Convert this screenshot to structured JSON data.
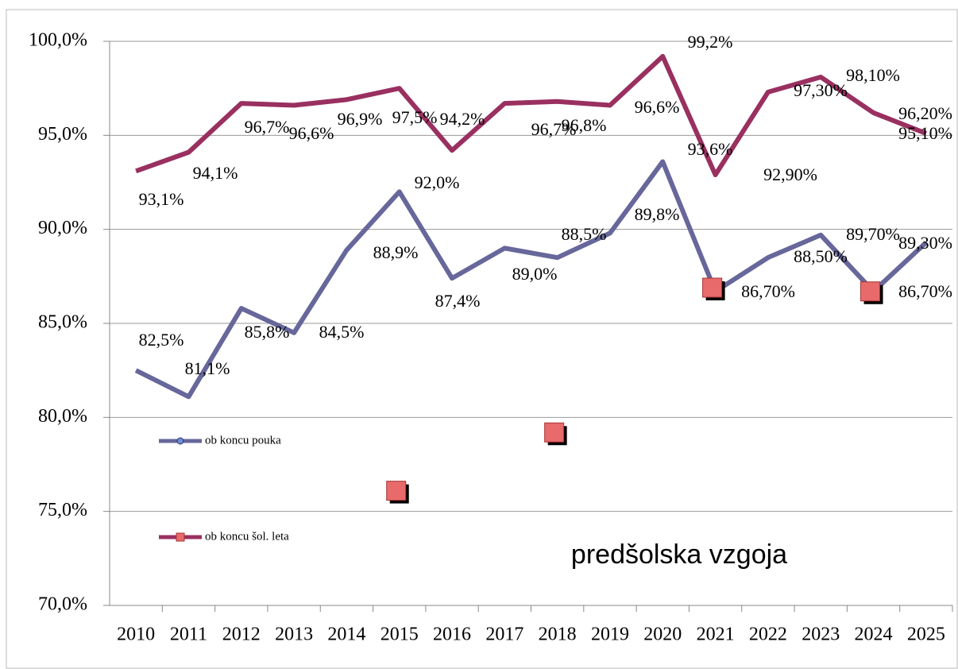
{
  "chart_data": {
    "type": "line",
    "categories": [
      "2010",
      "2011",
      "2012",
      "2013",
      "2014",
      "2015",
      "2016",
      "2017",
      "2018",
      "2019",
      "2020",
      "2021",
      "2022",
      "2023",
      "2024",
      "2025"
    ],
    "series": [
      {
        "name": "ob koncu pouka",
        "color": "#67679b",
        "values": [
          82.5,
          81.1,
          85.8,
          84.5,
          88.9,
          92.0,
          87.4,
          89.0,
          88.5,
          89.8,
          93.6,
          86.7,
          88.5,
          89.7,
          86.7,
          89.3
        ],
        "value_labels": [
          "82,5%",
          "81,1%",
          "85,8%",
          "84,5%",
          "88,9%",
          "92,0%",
          "87,4%",
          "89,0%",
          "88,5%",
          "89,8%",
          "93,6%",
          "86,70%",
          "88,50%",
          "89,70%",
          "86,70%",
          "89,30%"
        ]
      },
      {
        "name": "ob koncu šol. leta",
        "color": "#993060",
        "values": [
          93.1,
          94.1,
          96.7,
          96.6,
          96.9,
          97.5,
          94.2,
          96.7,
          96.8,
          96.6,
          99.2,
          92.9,
          97.3,
          98.1,
          96.2,
          95.1
        ],
        "value_labels": [
          "93,1%",
          "94,1%",
          "96,7%",
          "96,6%",
          "96,9%",
          "97,5%",
          "94,2%",
          "96,7%",
          "96,8%",
          "96,6%",
          "99,2%",
          "92,90%",
          "97,30%",
          "98,10%",
          "96,20%",
          "95,10%"
        ]
      }
    ],
    "extra_points": {
      "color": "#e86a6a",
      "x": [
        "2015",
        "2018",
        "2021",
        "2024"
      ],
      "values": [
        76.1,
        79.2,
        86.9,
        86.7
      ]
    },
    "annotation": "predšolska vzgoja",
    "ylim": [
      70,
      100
    ],
    "yticks": [
      {
        "value": 70,
        "label": "70,0%"
      },
      {
        "value": 75,
        "label": "75,0%"
      },
      {
        "value": 80,
        "label": "80,0%"
      },
      {
        "value": 85,
        "label": "85,0%"
      },
      {
        "value": 90,
        "label": "90,0%"
      },
      {
        "value": 95,
        "label": "95,0%"
      },
      {
        "value": 100,
        "label": "100,0%"
      }
    ],
    "grid": true
  }
}
